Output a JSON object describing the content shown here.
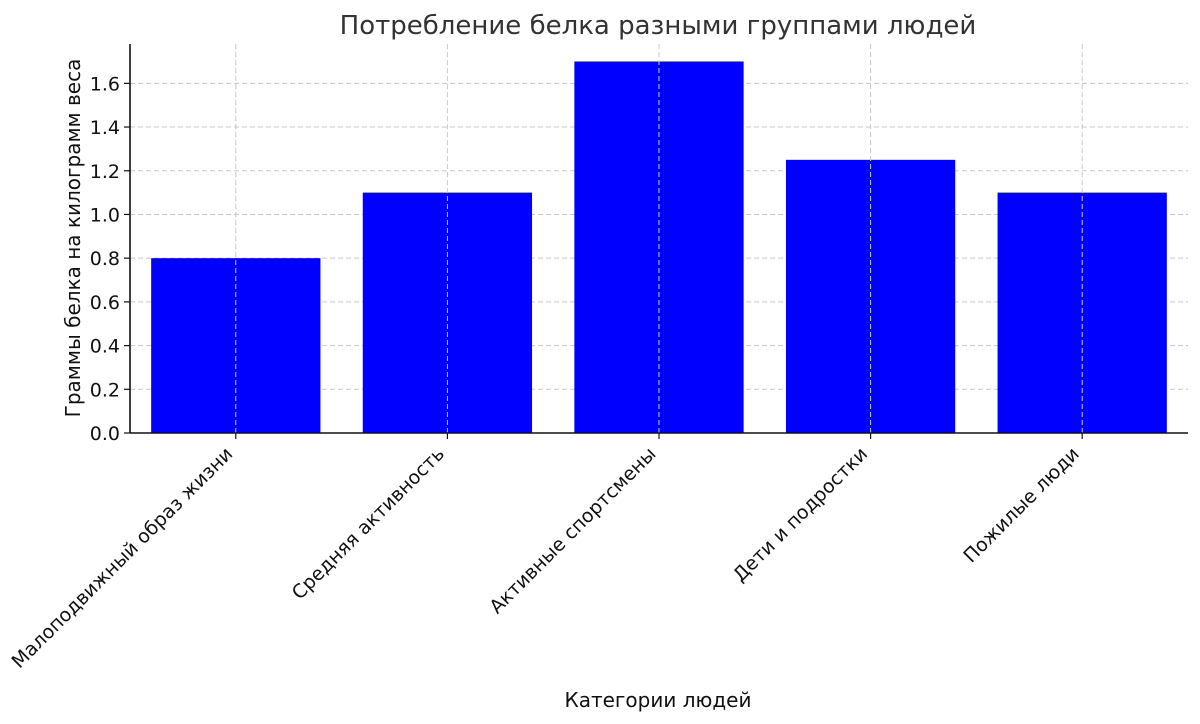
{
  "chart_data": {
    "type": "bar",
    "title": "Потребление белка разными группами людей",
    "xlabel": "Категории людей",
    "ylabel": "Граммы белка на килограмм веса",
    "categories": [
      "Малоподвижный образ жизни",
      "Средняя активность",
      "Активные спортсмены",
      "Дети и подростки",
      "Пожилые люди"
    ],
    "values": [
      0.8,
      1.1,
      1.7,
      1.25,
      1.1
    ],
    "ylim": [
      0,
      1.78
    ],
    "yticks": [
      0.0,
      0.2,
      0.4,
      0.6,
      0.8,
      1.0,
      1.2,
      1.4,
      1.6
    ],
    "ytick_labels": [
      "0.0",
      "0.2",
      "0.4",
      "0.6",
      "0.8",
      "1.0",
      "1.2",
      "1.4",
      "1.6"
    ],
    "bar_color": "#0000ff",
    "grid": true
  }
}
